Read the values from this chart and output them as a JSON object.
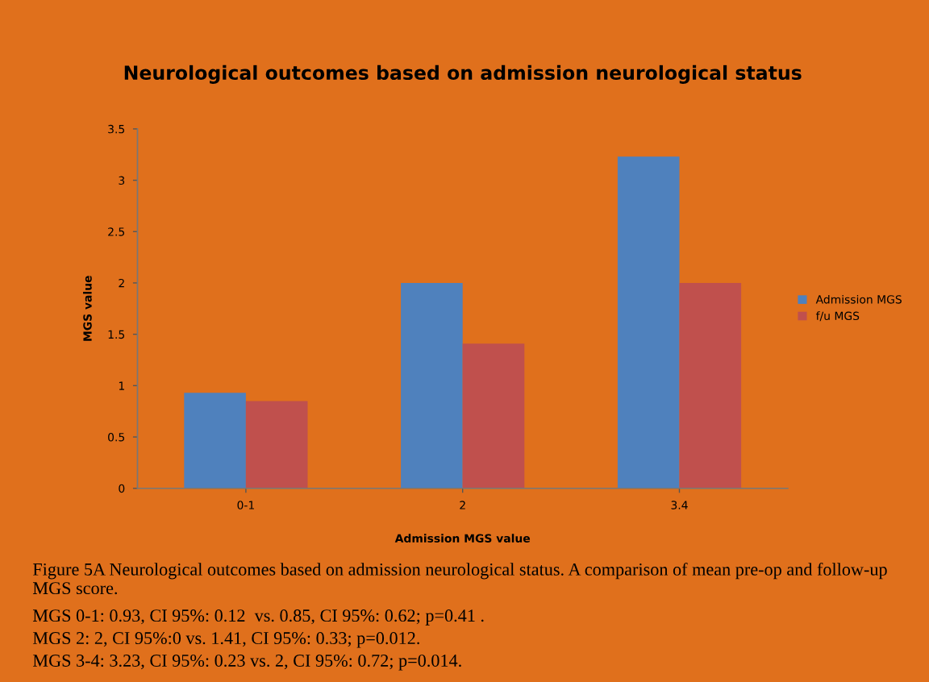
{
  "chart_data": {
    "type": "bar",
    "title": "Neurological outcomes based on admission neurological status",
    "xlabel": "Admission MGS value",
    "ylabel": "MGS value",
    "categories": [
      "0-1",
      "2",
      "3.4"
    ],
    "series": [
      {
        "name": "Admission MGS",
        "color": "#4f81bd",
        "values": [
          0.93,
          2,
          3.23
        ]
      },
      {
        "name": "f/u MGS",
        "color": "#c0504d",
        "values": [
          0.85,
          1.41,
          2
        ]
      }
    ],
    "ylim": [
      0,
      3.5
    ],
    "yticks": [
      0,
      0.5,
      1,
      1.5,
      2,
      2.5,
      3,
      3.5
    ],
    "grid": false,
    "legend": "right",
    "annotations": [
      "Figure 5A Neurological outcomes based on admission neurological status. A comparison of mean pre-op and follow-up MGS score.",
      "MGS 0-1: 0.93, CI 95%: 0.12  vs. 0.85, CI 95%: 0.62; p=0.41 .",
      "MGS 2: 2, CI 95%:0 vs. 1.41, CI 95%: 0.33; p=0.012.",
      "MGS 3-4: 3.23, CI 95%: 0.23 vs. 2, CI 95%: 0.72; p=0.014."
    ]
  }
}
